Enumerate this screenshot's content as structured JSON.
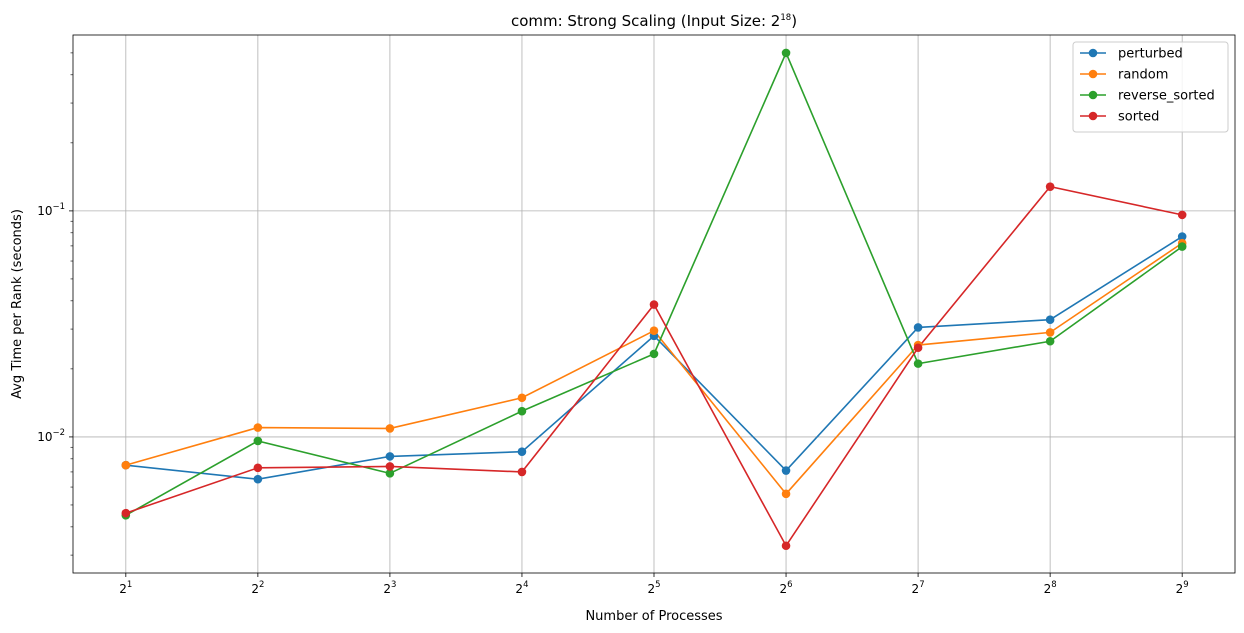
{
  "chart_data": {
    "type": "line",
    "title": {
      "prefix": "comm: Strong Scaling (Input Size: 2",
      "exponent": "18",
      "suffix": ")"
    },
    "xlabel": "Number of Processes",
    "ylabel": "Avg Time per Rank (seconds)",
    "x": [
      2,
      4,
      8,
      16,
      32,
      64,
      128,
      256,
      512
    ],
    "x_ticks": [
      {
        "base": "2",
        "exp": "1"
      },
      {
        "base": "2",
        "exp": "2"
      },
      {
        "base": "2",
        "exp": "3"
      },
      {
        "base": "2",
        "exp": "4"
      },
      {
        "base": "2",
        "exp": "5"
      },
      {
        "base": "2",
        "exp": "6"
      },
      {
        "base": "2",
        "exp": "7"
      },
      {
        "base": "2",
        "exp": "8"
      },
      {
        "base": "2",
        "exp": "9"
      }
    ],
    "y_scale": "log",
    "ylim": [
      0.0025,
      0.6
    ],
    "y_ticks": [
      {
        "value": 0.01,
        "base": "10",
        "exp": "−2"
      },
      {
        "value": 0.1,
        "base": "10",
        "exp": "−1"
      }
    ],
    "grid": true,
    "legend_position": "top-right",
    "series": [
      {
        "name": "perturbed",
        "color": "#1f77b4",
        "values": [
          0.0075,
          0.0065,
          0.0082,
          0.0086,
          0.028,
          0.0071,
          0.0305,
          0.033,
          0.077
        ]
      },
      {
        "name": "random",
        "color": "#ff7f0e",
        "values": [
          0.0075,
          0.011,
          0.0109,
          0.0149,
          0.0295,
          0.0056,
          0.0255,
          0.029,
          0.072
        ]
      },
      {
        "name": "reverse_sorted",
        "color": "#2ca02c",
        "values": [
          0.0045,
          0.0096,
          0.0069,
          0.013,
          0.0233,
          0.5,
          0.0211,
          0.0265,
          0.0695
        ]
      },
      {
        "name": "sorted",
        "color": "#d62728",
        "values": [
          0.0046,
          0.0073,
          0.0074,
          0.007,
          0.0385,
          0.0033,
          0.0248,
          0.128,
          0.096
        ]
      }
    ]
  }
}
